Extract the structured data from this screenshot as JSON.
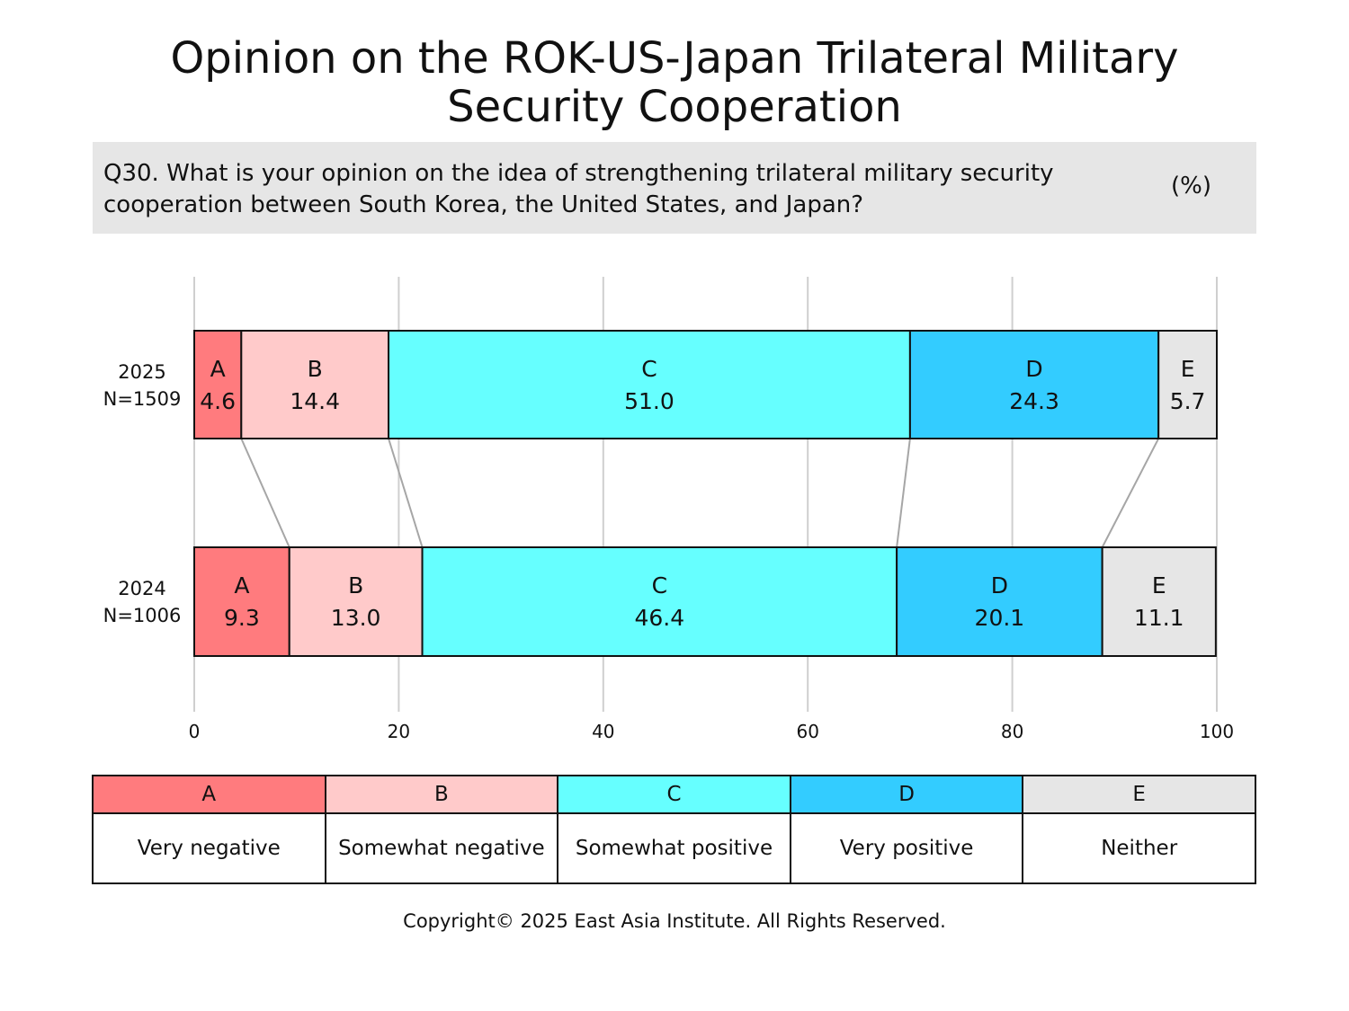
{
  "title_line1": "Opinion on the ROK-US-Japan Trilateral Military",
  "title_line2": "Security Cooperation",
  "question_line1": "Q30. What is your opinion on the idea of strengthening trilateral military security",
  "question_line2": "cooperation between South Korea, the United States, and Japan?",
  "unit": "(%)",
  "copyright": "Copyright© 2025 East Asia Institute. All Rights Reserved.",
  "chart_data": {
    "type": "bar",
    "orientation": "horizontal",
    "stacked": true,
    "xlim": [
      0,
      100
    ],
    "x_ticks": [
      0,
      20,
      40,
      60,
      80,
      100
    ],
    "grid": true,
    "categories": [
      {
        "year": "2025",
        "n": "N=1509"
      },
      {
        "year": "2024",
        "n": "N=1006"
      }
    ],
    "series": [
      {
        "key": "A",
        "name": "Very negative",
        "color": "#ff7b7e",
        "values": [
          4.6,
          9.3
        ]
      },
      {
        "key": "B",
        "name": "Somewhat negative",
        "color": "#ffcaca",
        "values": [
          14.4,
          13.0
        ]
      },
      {
        "key": "C",
        "name": "Somewhat positive",
        "color": "#66ffff",
        "values": [
          51.0,
          46.4
        ]
      },
      {
        "key": "D",
        "name": "Very positive",
        "color": "#33ccff",
        "values": [
          24.3,
          20.1
        ]
      },
      {
        "key": "E",
        "name": "Neither",
        "color": "#e6e6e6",
        "values": [
          5.7,
          11.1
        ]
      }
    ]
  }
}
